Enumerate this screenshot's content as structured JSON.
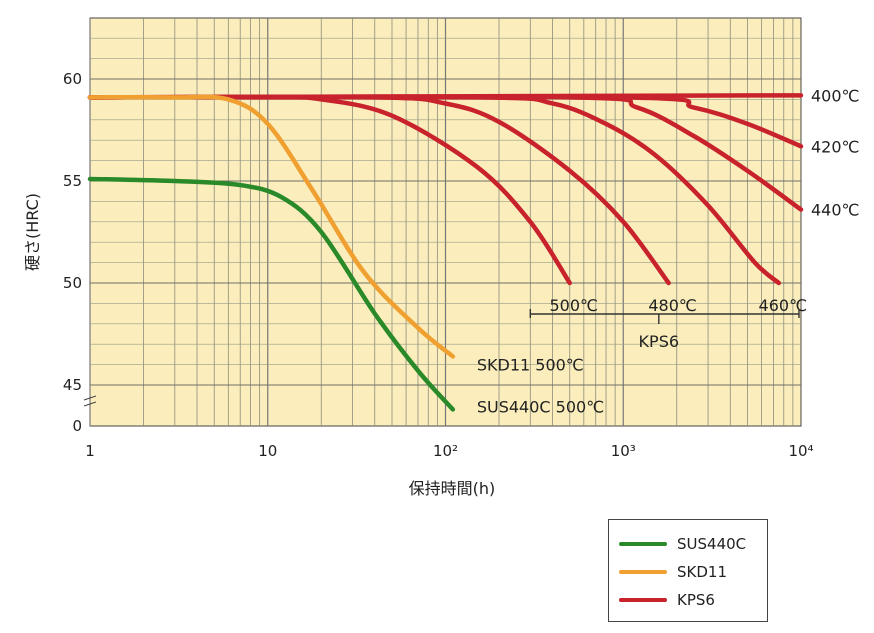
{
  "chart_data": {
    "type": "line",
    "title": "",
    "xlabel": "保持時間(h)",
    "ylabel": "硬さ(HRC)",
    "x_scale": "log",
    "xlim": [
      1,
      10000
    ],
    "ylim": [
      44,
      63
    ],
    "y_axis_break": true,
    "x_tick_labels": [
      "1",
      "10",
      "10²",
      "10³",
      "10⁴"
    ],
    "y_tick_labels": [
      "0",
      "45",
      "50",
      "55",
      "60"
    ],
    "grid": true,
    "background_color": "#fbeebc",
    "legend_position": "bottom-right",
    "series": [
      {
        "name": "SUS440C",
        "group": "SUS440C",
        "color": "#2a8a2a",
        "x": [
          1,
          3,
          7,
          12,
          20,
          40,
          70,
          110
        ],
        "y": [
          55.1,
          55.0,
          54.8,
          54.2,
          52.5,
          48.5,
          45.7,
          43.8
        ]
      },
      {
        "name": "SKD11",
        "group": "SKD11",
        "color": "#f0a030",
        "x": [
          1,
          3,
          6,
          10,
          18,
          35,
          70,
          110
        ],
        "y": [
          59.1,
          59.1,
          59.0,
          57.8,
          54.5,
          50.5,
          47.8,
          46.4
        ]
      },
      {
        "name": "KPS6 500℃",
        "group": "KPS6",
        "color": "#c8232c",
        "x": [
          1,
          10,
          20,
          50,
          150,
          300,
          500
        ],
        "y": [
          59.1,
          59.1,
          59.0,
          58.2,
          55.7,
          53.0,
          50.0
        ]
      },
      {
        "name": "KPS6 480℃",
        "group": "KPS6",
        "color": "#c8232c",
        "x": [
          1,
          40,
          100,
          200,
          500,
          1000,
          1800
        ],
        "y": [
          59.1,
          59.1,
          58.8,
          57.9,
          55.5,
          53.0,
          50.0
        ]
      },
      {
        "name": "KPS6 460℃",
        "group": "KPS6",
        "color": "#c8232c",
        "x": [
          1,
          150,
          400,
          800,
          1500,
          3000,
          5500,
          7500
        ],
        "y": [
          59.1,
          59.1,
          58.8,
          57.8,
          56.3,
          53.8,
          51.0,
          50.0
        ]
      },
      {
        "name": "KPS6 440℃",
        "group": "KPS6",
        "color": "#c8232c",
        "x": [
          1,
          500,
          1200,
          2500,
          5000,
          10000
        ],
        "y": [
          59.1,
          59.1,
          58.6,
          57.2,
          55.5,
          53.6
        ]
      },
      {
        "name": "KPS6 420℃",
        "group": "KPS6",
        "color": "#c8232c",
        "x": [
          1,
          1000,
          2500,
          5000,
          10000
        ],
        "y": [
          59.1,
          59.1,
          58.6,
          57.8,
          56.7
        ]
      },
      {
        "name": "KPS6 400℃",
        "group": "KPS6",
        "color": "#c8232c",
        "x": [
          1,
          10000
        ],
        "y": [
          59.1,
          59.2
        ]
      }
    ],
    "curve_labels": [
      {
        "text": "SKD11 500℃",
        "series": "SKD11"
      },
      {
        "text": "SUS440C  500℃",
        "series": "SUS440C"
      },
      {
        "text": "500℃",
        "series": "KPS6 500℃"
      },
      {
        "text": "480℃",
        "series": "KPS6 480℃"
      },
      {
        "text": "460℃",
        "series": "KPS6 460℃"
      },
      {
        "text": "400℃",
        "series": "KPS6 400℃"
      },
      {
        "text": "420℃",
        "series": "KPS6 420℃"
      },
      {
        "text": "440℃",
        "series": "KPS6 440℃"
      }
    ],
    "group_label": "KPS6"
  },
  "legend": {
    "items": [
      {
        "label": "SUS440C",
        "color": "#2a8a2a"
      },
      {
        "label": "SKD11",
        "color": "#f0a030"
      },
      {
        "label": "KPS6",
        "color": "#c8232c"
      }
    ]
  }
}
